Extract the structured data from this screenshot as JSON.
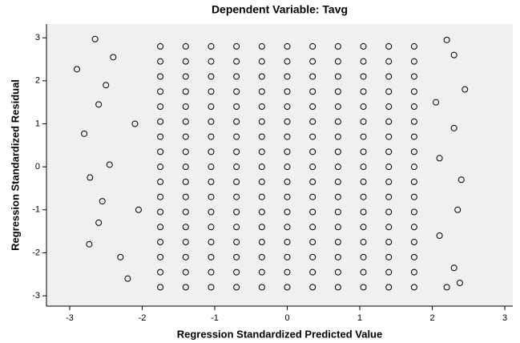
{
  "chart_data": {
    "type": "scatter",
    "title": "Dependent Variable: Tavg",
    "x_label": "Regression Standardized Predicted Value",
    "y_label": "Regression Standardized Residual",
    "xlim": [
      -3.32,
      3.11
    ],
    "ylim": [
      -3.24,
      3.32
    ],
    "xticks": [
      -3,
      -2,
      -1,
      0,
      1,
      2,
      3
    ],
    "yticks": [
      -3,
      -2,
      -1,
      0,
      1,
      2,
      3
    ],
    "color": "#000000",
    "x": [
      -1.75,
      -1.4,
      -1.05,
      -0.7,
      -0.35,
      0,
      0.35,
      0.7,
      1.05,
      1.4,
      1.75,
      -1.75,
      -1.4,
      -1.05,
      -0.7,
      -0.35,
      0,
      0.35,
      0.7,
      1.05,
      1.4,
      1.75,
      -1.75,
      -1.4,
      -1.05,
      -0.7,
      -0.35,
      0,
      0.35,
      0.7,
      1.05,
      1.4,
      1.75,
      -1.75,
      -1.4,
      -1.05,
      -0.7,
      -0.35,
      0,
      0.35,
      0.7,
      1.05,
      1.4,
      1.75,
      -1.75,
      -1.4,
      -1.05,
      -0.7,
      -0.35,
      0,
      0.35,
      0.7,
      1.05,
      1.4,
      1.75,
      -1.75,
      -1.4,
      -1.05,
      -0.7,
      -0.35,
      0,
      0.35,
      0.7,
      1.05,
      1.4,
      1.75,
      -1.75,
      -1.4,
      -1.05,
      -0.7,
      -0.35,
      0,
      0.35,
      0.7,
      1.05,
      1.4,
      1.75,
      -1.75,
      -1.4,
      -1.05,
      -0.7,
      -0.35,
      0,
      0.35,
      0.7,
      1.05,
      1.4,
      1.75,
      -1.75,
      -1.4,
      -1.05,
      -0.7,
      -0.35,
      0,
      0.35,
      0.7,
      1.05,
      1.4,
      1.75,
      -1.75,
      -1.4,
      -1.05,
      -0.7,
      -0.35,
      0,
      0.35,
      0.7,
      1.05,
      1.4,
      1.75,
      -1.75,
      -1.4,
      -1.05,
      -0.7,
      -0.35,
      0,
      0.35,
      0.7,
      1.05,
      1.4,
      1.75,
      -1.75,
      -1.4,
      -1.05,
      -0.7,
      -0.35,
      0,
      0.35,
      0.7,
      1.05,
      1.4,
      1.75,
      -1.75,
      -1.4,
      -1.05,
      -0.7,
      -0.35,
      0,
      0.35,
      0.7,
      1.05,
      1.4,
      1.75,
      -1.75,
      -1.4,
      -1.05,
      -0.7,
      -0.35,
      0,
      0.35,
      0.7,
      1.05,
      1.4,
      1.75,
      -1.75,
      -1.4,
      -1.05,
      -0.7,
      -0.35,
      0,
      0.35,
      0.7,
      1.05,
      1.4,
      1.75,
      -1.75,
      -1.4,
      -1.05,
      -0.7,
      -0.35,
      0,
      0.35,
      0.7,
      1.05,
      1.4,
      1.75,
      -1.75,
      -1.4,
      -1.05,
      -0.7,
      -0.35,
      0,
      0.35,
      0.7,
      1.05,
      1.4,
      1.75,
      -2.9,
      -2.65,
      -2.8,
      -2.72,
      -2.73,
      -2.6,
      -2.55,
      -2.6,
      -2.5,
      -2.4,
      -2.45,
      -2.3,
      -2.2,
      -2.1,
      -2.05,
      2.45,
      2.3,
      2.2,
      2.35,
      2.3,
      2.38,
      2.2,
      2.3,
      2.4,
      2.1,
      2.05,
      2.1
    ],
    "values": [
      -2.8,
      -2.8,
      -2.8,
      -2.8,
      -2.8,
      -2.8,
      -2.8,
      -2.8,
      -2.8,
      -2.8,
      -2.8,
      -2.45,
      -2.45,
      -2.45,
      -2.45,
      -2.45,
      -2.45,
      -2.45,
      -2.45,
      -2.45,
      -2.45,
      -2.45,
      -2.1,
      -2.1,
      -2.1,
      -2.1,
      -2.1,
      -2.1,
      -2.1,
      -2.1,
      -2.1,
      -2.1,
      -2.1,
      -1.75,
      -1.75,
      -1.75,
      -1.75,
      -1.75,
      -1.75,
      -1.75,
      -1.75,
      -1.75,
      -1.75,
      -1.75,
      -1.4,
      -1.4,
      -1.4,
      -1.4,
      -1.4,
      -1.4,
      -1.4,
      -1.4,
      -1.4,
      -1.4,
      -1.4,
      -1.05,
      -1.05,
      -1.05,
      -1.05,
      -1.05,
      -1.05,
      -1.05,
      -1.05,
      -1.05,
      -1.05,
      -1.05,
      -0.7,
      -0.7,
      -0.7,
      -0.7,
      -0.7,
      -0.7,
      -0.7,
      -0.7,
      -0.7,
      -0.7,
      -0.7,
      -0.35,
      -0.35,
      -0.35,
      -0.35,
      -0.35,
      -0.35,
      -0.35,
      -0.35,
      -0.35,
      -0.35,
      -0.35,
      0,
      0,
      0,
      0,
      0,
      0,
      0,
      0,
      0,
      0,
      0,
      0.35,
      0.35,
      0.35,
      0.35,
      0.35,
      0.35,
      0.35,
      0.35,
      0.35,
      0.35,
      0.35,
      0.7,
      0.7,
      0.7,
      0.7,
      0.7,
      0.7,
      0.7,
      0.7,
      0.7,
      0.7,
      0.7,
      1.05,
      1.05,
      1.05,
      1.05,
      1.05,
      1.05,
      1.05,
      1.05,
      1.05,
      1.05,
      1.05,
      1.4,
      1.4,
      1.4,
      1.4,
      1.4,
      1.4,
      1.4,
      1.4,
      1.4,
      1.4,
      1.4,
      1.75,
      1.75,
      1.75,
      1.75,
      1.75,
      1.75,
      1.75,
      1.75,
      1.75,
      1.75,
      1.75,
      2.1,
      2.1,
      2.1,
      2.1,
      2.1,
      2.1,
      2.1,
      2.1,
      2.1,
      2.1,
      2.1,
      2.45,
      2.45,
      2.45,
      2.45,
      2.45,
      2.45,
      2.45,
      2.45,
      2.45,
      2.45,
      2.45,
      2.8,
      2.8,
      2.8,
      2.8,
      2.8,
      2.8,
      2.8,
      2.8,
      2.8,
      2.8,
      2.8,
      2.27,
      2.97,
      0.77,
      -0.25,
      -1.8,
      -1.3,
      -0.8,
      1.45,
      1.9,
      2.55,
      0.05,
      -2.1,
      -2.6,
      1.0,
      -1.0,
      1.8,
      2.6,
      2.95,
      -1.0,
      -2.35,
      -2.7,
      -2.8,
      0.9,
      -0.3,
      -1.6,
      1.5,
      0.2
    ]
  }
}
